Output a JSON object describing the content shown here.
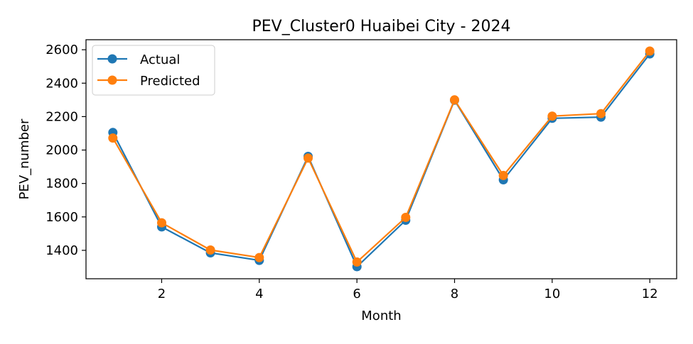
{
  "chart_data": {
    "type": "line",
    "title": "PEV_Cluster0 Huaibei City - 2024",
    "xlabel": "Month",
    "ylabel": "PEV_number",
    "x": [
      1,
      2,
      3,
      4,
      5,
      6,
      7,
      8,
      9,
      10,
      11,
      12
    ],
    "xlim": [
      0.45,
      12.55
    ],
    "ylim": [
      1230,
      2660
    ],
    "xticks": [
      2,
      4,
      6,
      8,
      10,
      12
    ],
    "yticks": [
      1400,
      1600,
      1800,
      2000,
      2200,
      2400,
      2600
    ],
    "grid": false,
    "legend_position": "top-left",
    "series": [
      {
        "name": "Actual",
        "color": "#1f77b4",
        "values": [
          2105,
          1540,
          1385,
          1340,
          1962,
          1302,
          1580,
          2298,
          1822,
          2190,
          2197,
          2575
        ]
      },
      {
        "name": "Predicted",
        "color": "#ff7f0e",
        "values": [
          2072,
          1565,
          1402,
          1357,
          1952,
          1330,
          1597,
          2300,
          1848,
          2203,
          2218,
          2592
        ]
      }
    ]
  }
}
